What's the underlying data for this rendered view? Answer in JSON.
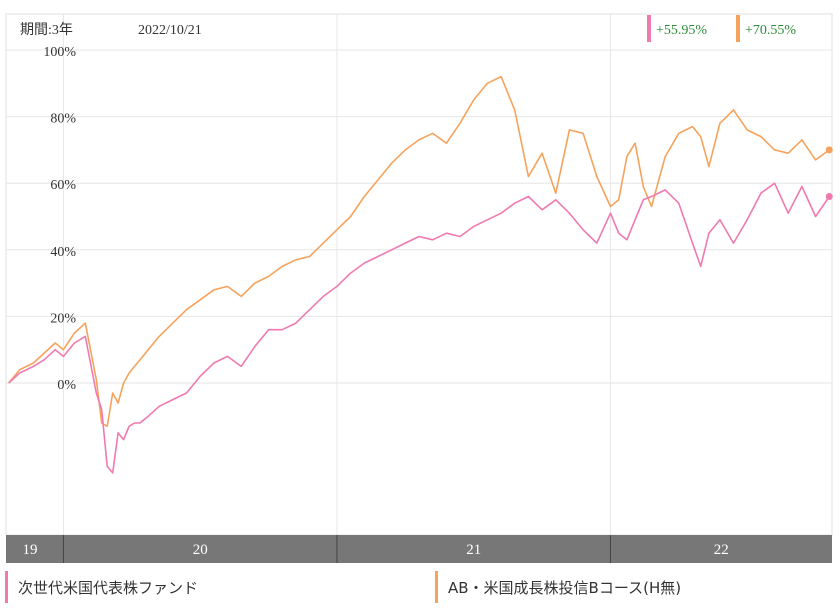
{
  "header": {
    "period": "期間:3年",
    "date": "2022/10/21"
  },
  "returns": [
    {
      "text": "+55.95%",
      "color": "#f07ab0"
    },
    {
      "text": "+70.55%",
      "color": "#f5a35c"
    }
  ],
  "legend": [
    {
      "name": "次世代米国代表株ファンド",
      "color": "#f07ab0"
    },
    {
      "name": "AB・米国成長株投信Bコース(H無)",
      "color": "#f5a35c"
    }
  ],
  "chart_data": {
    "type": "line",
    "x_axis_years": [
      "19",
      "20",
      "21",
      "22"
    ],
    "y_ticks": [
      "100%",
      "80%",
      "60%",
      "40%",
      "20%",
      "0%"
    ],
    "ylim": [
      -45,
      103
    ],
    "xlim": [
      2019.79,
      2022.81
    ],
    "grid": true,
    "series": [
      {
        "name": "次世代米国代表株ファンド",
        "color": "#f07ab0",
        "end_value": 55.95,
        "x": [
          2019.8,
          2019.84,
          2019.89,
          2019.93,
          2019.97,
          2020.0,
          2020.04,
          2020.08,
          2020.12,
          2020.14,
          2020.16,
          2020.18,
          2020.2,
          2020.22,
          2020.24,
          2020.26,
          2020.28,
          2020.31,
          2020.35,
          2020.4,
          2020.45,
          2020.5,
          2020.55,
          2020.6,
          2020.65,
          2020.7,
          2020.75,
          2020.8,
          2020.85,
          2020.9,
          2020.95,
          2021.0,
          2021.05,
          2021.1,
          2021.15,
          2021.2,
          2021.25,
          2021.3,
          2021.35,
          2021.4,
          2021.45,
          2021.5,
          2021.55,
          2021.6,
          2021.65,
          2021.7,
          2021.75,
          2021.8,
          2021.85,
          2021.9,
          2021.95,
          2022.0,
          2022.03,
          2022.06,
          2022.09,
          2022.12,
          2022.15,
          2022.2,
          2022.25,
          2022.3,
          2022.33,
          2022.36,
          2022.4,
          2022.45,
          2022.5,
          2022.55,
          2022.6,
          2022.65,
          2022.7,
          2022.75,
          2022.8
        ],
        "y": [
          0,
          3,
          5,
          7,
          10,
          8,
          12,
          14,
          -3,
          -8,
          -25,
          -27,
          -15,
          -17,
          -13,
          -12,
          -12,
          -10,
          -7,
          -5,
          -3,
          2,
          6,
          8,
          5,
          11,
          16,
          16,
          18,
          22,
          26,
          29,
          33,
          36,
          38,
          40,
          42,
          44,
          43,
          45,
          44,
          47,
          49,
          51,
          54,
          56,
          52,
          55,
          51,
          46,
          42,
          51,
          45,
          43,
          49,
          55,
          56,
          58,
          54,
          42,
          35,
          45,
          49,
          42,
          49,
          57,
          60,
          51,
          59,
          50,
          56
        ]
      },
      {
        "name": "AB・米国成長株投信Bコース(H無)",
        "color": "#f5a35c",
        "end_value": 70.55,
        "x": [
          2019.8,
          2019.84,
          2019.89,
          2019.93,
          2019.97,
          2020.0,
          2020.04,
          2020.08,
          2020.12,
          2020.14,
          2020.16,
          2020.18,
          2020.2,
          2020.22,
          2020.24,
          2020.26,
          2020.28,
          2020.31,
          2020.35,
          2020.4,
          2020.45,
          2020.5,
          2020.55,
          2020.6,
          2020.65,
          2020.7,
          2020.75,
          2020.8,
          2020.85,
          2020.9,
          2020.95,
          2021.0,
          2021.05,
          2021.1,
          2021.15,
          2021.2,
          2021.25,
          2021.3,
          2021.35,
          2021.4,
          2021.45,
          2021.5,
          2021.55,
          2021.6,
          2021.65,
          2021.7,
          2021.75,
          2021.8,
          2021.85,
          2021.9,
          2021.95,
          2022.0,
          2022.03,
          2022.06,
          2022.09,
          2022.12,
          2022.15,
          2022.2,
          2022.25,
          2022.3,
          2022.33,
          2022.36,
          2022.4,
          2022.45,
          2022.5,
          2022.55,
          2022.6,
          2022.65,
          2022.7,
          2022.75,
          2022.8
        ],
        "y": [
          0,
          4,
          6,
          9,
          12,
          10,
          15,
          18,
          1,
          -12,
          -13,
          -3,
          -6,
          0,
          3,
          5,
          7,
          10,
          14,
          18,
          22,
          25,
          28,
          29,
          26,
          30,
          32,
          35,
          37,
          38,
          42,
          46,
          50,
          56,
          61,
          66,
          70,
          73,
          75,
          72,
          78,
          85,
          90,
          92,
          82,
          62,
          69,
          57,
          76,
          75,
          62,
          53,
          55,
          68,
          72,
          59,
          53,
          68,
          75,
          77,
          74,
          65,
          78,
          82,
          76,
          74,
          70,
          69,
          73,
          67,
          70
        ]
      }
    ]
  }
}
